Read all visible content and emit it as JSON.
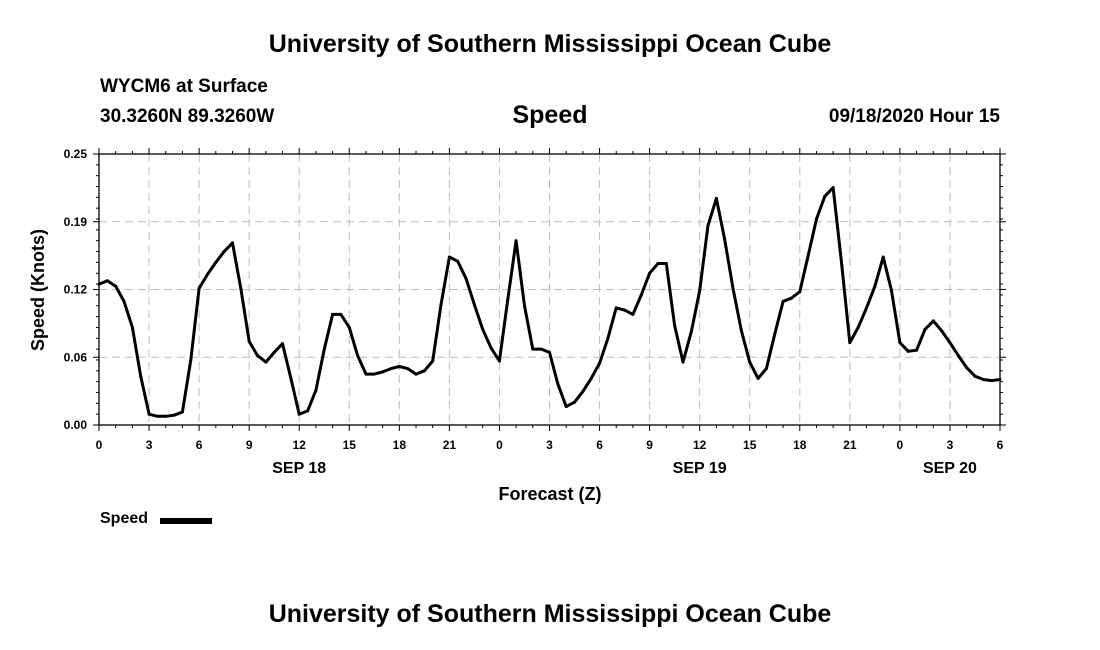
{
  "page_title": "University of Southern Mississippi Ocean Cube",
  "footer_title": "University of Southern Mississippi Ocean Cube",
  "station": {
    "name": "WYCM6 at Surface",
    "coords": "30.3260N 89.3260W"
  },
  "variable": "Speed",
  "issued": "09/18/2020 Hour 15",
  "legend": {
    "label": "Speed",
    "color": "#000000"
  },
  "chart_data": {
    "type": "line",
    "title": "Speed",
    "xlabel": "Forecast (Z)",
    "ylabel": "Speed (Knots)",
    "ylim": [
      0,
      0.25
    ],
    "yticks": [
      "0.00",
      "0.06",
      "0.12",
      "0.19",
      "0.25"
    ],
    "ytick_values": [
      0,
      0.0625,
      0.125,
      0.1875,
      0.25
    ],
    "xlim": [
      0,
      54
    ],
    "xticks": [
      "0",
      "3",
      "6",
      "9",
      "12",
      "15",
      "18",
      "21",
      "0",
      "3",
      "6",
      "9",
      "12",
      "15",
      "18",
      "21",
      "0",
      "3",
      "6"
    ],
    "xtick_values": [
      0,
      3,
      6,
      9,
      12,
      15,
      18,
      21,
      24,
      27,
      30,
      33,
      36,
      39,
      42,
      45,
      48,
      51,
      54
    ],
    "date_labels": [
      {
        "label": "SEP 18",
        "hour": 12
      },
      {
        "label": "SEP 19",
        "hour": 36
      },
      {
        "label": "SEP 20",
        "hour": 51
      }
    ],
    "grid": true,
    "series": [
      {
        "name": "Speed",
        "color": "#000000",
        "x": [
          0,
          0.5,
          1,
          1.5,
          2,
          2.5,
          3,
          3.5,
          4,
          4.5,
          5,
          5.5,
          6,
          6.5,
          7,
          7.5,
          8,
          8.5,
          9,
          9.5,
          10,
          10.5,
          11,
          11.5,
          12,
          12.5,
          13,
          13.5,
          14,
          14.5,
          15,
          15.5,
          16,
          16.5,
          17,
          17.5,
          18,
          18.5,
          19,
          19.5,
          20,
          20.5,
          21,
          21.5,
          22,
          22.5,
          23,
          23.5,
          24,
          24.5,
          25,
          25.5,
          26,
          26.5,
          27,
          27.5,
          28,
          28.5,
          29,
          29.5,
          30,
          30.5,
          31,
          31.5,
          32,
          32.5,
          33,
          33.5,
          34,
          34.5,
          35,
          35.5,
          36,
          36.5,
          37,
          37.5,
          38,
          38.5,
          39,
          39.5,
          40,
          40.5,
          41,
          41.5,
          42,
          42.5,
          43,
          43.5,
          44,
          44.5,
          45,
          45.5,
          46,
          46.5,
          47,
          47.5,
          48,
          48.5,
          49,
          49.5,
          50,
          50.5,
          51,
          51.5,
          52,
          52.5,
          53,
          53.5,
          54
        ],
        "values": [
          0.13,
          0.133,
          0.128,
          0.114,
          0.09,
          0.045,
          0.01,
          0.008,
          0.008,
          0.009,
          0.012,
          0.06,
          0.126,
          0.139,
          0.15,
          0.16,
          0.168,
          0.126,
          0.077,
          0.064,
          0.058,
          0.067,
          0.075,
          0.043,
          0.01,
          0.013,
          0.032,
          0.07,
          0.102,
          0.102,
          0.09,
          0.064,
          0.047,
          0.047,
          0.049,
          0.052,
          0.054,
          0.052,
          0.047,
          0.05,
          0.059,
          0.111,
          0.155,
          0.151,
          0.135,
          0.111,
          0.088,
          0.071,
          0.059,
          0.116,
          0.17,
          0.11,
          0.07,
          0.07,
          0.067,
          0.038,
          0.017,
          0.021,
          0.031,
          0.043,
          0.057,
          0.08,
          0.108,
          0.106,
          0.102,
          0.12,
          0.14,
          0.149,
          0.149,
          0.092,
          0.058,
          0.086,
          0.124,
          0.184,
          0.209,
          0.171,
          0.126,
          0.087,
          0.058,
          0.043,
          0.052,
          0.084,
          0.114,
          0.117,
          0.123,
          0.156,
          0.19,
          0.211,
          0.219,
          0.15,
          0.076,
          0.09,
          0.108,
          0.128,
          0.155,
          0.124,
          0.076,
          0.068,
          0.069,
          0.088,
          0.096,
          0.087,
          0.076,
          0.064,
          0.053,
          0.045,
          0.042,
          0.041,
          0.042
        ]
      }
    ]
  }
}
